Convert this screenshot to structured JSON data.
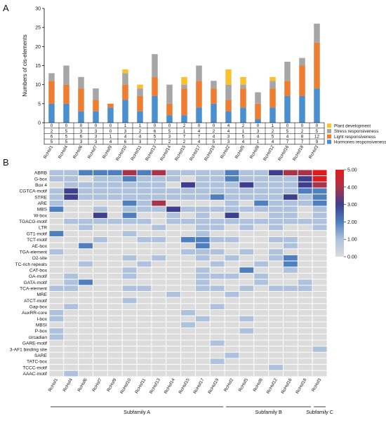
{
  "panels": [
    {
      "label": "A"
    },
    {
      "label": "B"
    }
  ],
  "chart_data": [
    {
      "type": "bar",
      "stacked": true,
      "panel": "A",
      "ylabel": "Numbers of cis-elements",
      "ylim": [
        0,
        30
      ],
      "yticks": [
        0,
        5,
        10,
        15,
        20,
        25,
        30
      ],
      "categories": [
        "RcHsf1",
        "RcHsf4",
        "RcHsf6",
        "RcHsf7",
        "RcHsf9",
        "RcHsf10",
        "RcHsf11",
        "RcHsf13",
        "RcHsf14",
        "RcHsf15",
        "RcHsf17",
        "RcHsf19",
        "RcHsf2",
        "RcHsf5",
        "RcHsf8",
        "RcHsf12",
        "RcHsf16",
        "RcHsf18",
        "RcHsf3"
      ],
      "series": [
        {
          "name": "Hormones responsiveness",
          "color": "#4a8fcf",
          "values": [
            5,
            5,
            3,
            3,
            4,
            6,
            3,
            7,
            2,
            2,
            4,
            5,
            3,
            4,
            1,
            4,
            7,
            7,
            9
          ]
        },
        {
          "name": "Light responsiveness",
          "color": "#ee7d31",
          "values": [
            6,
            5,
            6,
            3,
            1,
            4,
            4,
            5,
            3,
            7,
            7,
            4,
            3,
            5,
            4,
            5,
            4,
            8,
            12
          ]
        },
        {
          "name": "Stress responsiveness",
          "color": "#a6a6a6",
          "values": [
            2,
            5,
            3,
            3,
            0,
            3,
            2,
            6,
            5,
            1,
            4,
            2,
            4,
            1,
            3,
            2,
            5,
            2,
            5
          ]
        },
        {
          "name": "Plant development",
          "color": "#fbc02d",
          "values": [
            0,
            0,
            0,
            0,
            0,
            1,
            1,
            0,
            0,
            2,
            0,
            0,
            4,
            2,
            0,
            1,
            0,
            0,
            0
          ]
        }
      ],
      "table_rows": [
        "Plant development",
        "Stress responsiveness",
        "Light responsiveness",
        "Hormones responsiveness"
      ],
      "legend": "right of table"
    },
    {
      "type": "heatmap",
      "panel": "B",
      "columns": [
        "RcHsf1",
        "RcHsf4",
        "RcHsf6",
        "RcHsf7",
        "RcHsf9",
        "RcHsf10",
        "RcHsf11",
        "RcHsf13",
        "RcHsf14",
        "RcHsf15",
        "RcHsf17",
        "RcHsf19",
        "RcHsf2",
        "RcHsf5",
        "RcHsf8",
        "RcHsf12",
        "RcHsf16",
        "RcHsf18",
        "RcHsf3"
      ],
      "rows": [
        "ABRB",
        "G-box",
        "Box 4",
        "CGTCA-motif",
        "STRE",
        "ARE",
        "MBS",
        "W-box",
        "TGACG-motif",
        "LTR",
        "GT1-motif",
        "TCT-motif",
        "AE-box",
        "TGA-element",
        "O2-site",
        "TC-rich repeats",
        "CAT-box",
        "GA-motif",
        "GATA-motif",
        "TCA-element",
        "MRE",
        "ATCT-motif",
        "Gap-box",
        "AuxRR-core",
        "I-box",
        "MBSI",
        "P-box",
        "circadian",
        "GARE-motif",
        "3-AF1 binding site",
        "SARE",
        "TATC-box",
        "TCCC-motif",
        "AAAC-motif"
      ],
      "values": [
        [
          1,
          1,
          2,
          2,
          2,
          4,
          2,
          4,
          1,
          1,
          1,
          1,
          2,
          1,
          1,
          3,
          4,
          4,
          5
        ],
        [
          1,
          1,
          0,
          1,
          1,
          2,
          1,
          1,
          1,
          0,
          1,
          1,
          2,
          1,
          1,
          1,
          1,
          3,
          5
        ],
        [
          0,
          1,
          1,
          1,
          1,
          1,
          1,
          1,
          0,
          3,
          1,
          1,
          1,
          3,
          1,
          1,
          1,
          3,
          4
        ],
        [
          1,
          3,
          1,
          1,
          1,
          1,
          1,
          1,
          1,
          1,
          1,
          1,
          1,
          1,
          1,
          1,
          1,
          2,
          2
        ],
        [
          1,
          3,
          1,
          1,
          1,
          1,
          1,
          1,
          1,
          1,
          1,
          2,
          1,
          1,
          1,
          1,
          3,
          1,
          2
        ],
        [
          1,
          0,
          0,
          0,
          0,
          2,
          1,
          4,
          0,
          0,
          0,
          0,
          1,
          0,
          2,
          1,
          1,
          1,
          2
        ],
        [
          2,
          0,
          0,
          1,
          0,
          1,
          1,
          1,
          3,
          1,
          1,
          1,
          1,
          1,
          1,
          1,
          1,
          0,
          1
        ],
        [
          0,
          0,
          0,
          3,
          0,
          2,
          0,
          0,
          1,
          0,
          1,
          0,
          3,
          0,
          0,
          1,
          1,
          0,
          1
        ],
        [
          0,
          1,
          1,
          1,
          1,
          1,
          1,
          0,
          1,
          1,
          1,
          1,
          1,
          1,
          1,
          1,
          1,
          1,
          1
        ],
        [
          0,
          0,
          1,
          0,
          0,
          0,
          0,
          1,
          0,
          0,
          1,
          1,
          0,
          1,
          0,
          1,
          0,
          0,
          1
        ],
        [
          2,
          0,
          0,
          0,
          0,
          1,
          0,
          0,
          0,
          0,
          1,
          0,
          0,
          0,
          0,
          0,
          0,
          0,
          0
        ],
        [
          0,
          0,
          0,
          1,
          0,
          0,
          1,
          1,
          0,
          2,
          2,
          1,
          1,
          0,
          0,
          1,
          1,
          0,
          0
        ],
        [
          0,
          0,
          2,
          0,
          0,
          0,
          0,
          0,
          0,
          0,
          2,
          0,
          0,
          0,
          0,
          0,
          1,
          0,
          0
        ],
        [
          1,
          0,
          0,
          0,
          0,
          0,
          0,
          0,
          0,
          1,
          1,
          1,
          0,
          1,
          0,
          1,
          0,
          0,
          0
        ],
        [
          0,
          0,
          0,
          0,
          0,
          1,
          0,
          1,
          0,
          0,
          1,
          0,
          1,
          0,
          0,
          1,
          2,
          0,
          0
        ],
        [
          0,
          0,
          1,
          0,
          0,
          0,
          1,
          0,
          0,
          0,
          0,
          1,
          0,
          0,
          1,
          0,
          2,
          0,
          0
        ],
        [
          0,
          0,
          0,
          0,
          0,
          1,
          0,
          0,
          0,
          0,
          1,
          0,
          0,
          2,
          0,
          0,
          1,
          0,
          0
        ],
        [
          0,
          1,
          0,
          0,
          0,
          1,
          0,
          0,
          0,
          0,
          1,
          1,
          1,
          0,
          1,
          0,
          0,
          0,
          0
        ],
        [
          0,
          1,
          2,
          0,
          0,
          0,
          0,
          0,
          0,
          0,
          1,
          0,
          0,
          0,
          1,
          0,
          0,
          1,
          0
        ],
        [
          1,
          1,
          0,
          0,
          0,
          1,
          1,
          0,
          0,
          0,
          1,
          1,
          0,
          1,
          0,
          1,
          1,
          1,
          0
        ],
        [
          0,
          0,
          0,
          0,
          0,
          0,
          0,
          0,
          1,
          0,
          0,
          0,
          1,
          0,
          0,
          0,
          0,
          0,
          0
        ],
        [
          0,
          0,
          0,
          0,
          0,
          1,
          0,
          0,
          0,
          0,
          0,
          0,
          0,
          0,
          0,
          0,
          0,
          0,
          0
        ],
        [
          0,
          1,
          0,
          0,
          0,
          0,
          0,
          0,
          0,
          0,
          0,
          1,
          0,
          0,
          0,
          0,
          0,
          0,
          0
        ],
        [
          1,
          0,
          0,
          0,
          0,
          0,
          0,
          0,
          0,
          1,
          0,
          0,
          0,
          0,
          0,
          0,
          0,
          0,
          0
        ],
        [
          1,
          0,
          0,
          0,
          0,
          0,
          0,
          0,
          0,
          0,
          1,
          0,
          0,
          1,
          0,
          0,
          0,
          0,
          0
        ],
        [
          0,
          0,
          0,
          0,
          0,
          0,
          0,
          0,
          0,
          1,
          0,
          0,
          0,
          0,
          0,
          0,
          0,
          0,
          0
        ],
        [
          1,
          0,
          0,
          0,
          0,
          0,
          0,
          0,
          0,
          0,
          0,
          0,
          0,
          1,
          0,
          0,
          0,
          0,
          0
        ],
        [
          1,
          0,
          0,
          0,
          0,
          0,
          0,
          0,
          0,
          0,
          0,
          0,
          0,
          0,
          0,
          0,
          0,
          0,
          0
        ],
        [
          0,
          0,
          0,
          0,
          0,
          0,
          0,
          0,
          0,
          0,
          0,
          1,
          0,
          0,
          0,
          0,
          0,
          0,
          0
        ],
        [
          0,
          0,
          0,
          0,
          0,
          0,
          0,
          0,
          0,
          0,
          0,
          0,
          0,
          0,
          0,
          0,
          0,
          0,
          1
        ],
        [
          0,
          0,
          0,
          0,
          0,
          0,
          0,
          0,
          0,
          0,
          0,
          0,
          1,
          0,
          0,
          0,
          0,
          0,
          0
        ],
        [
          0,
          0,
          0,
          0,
          0,
          0,
          0,
          0,
          0,
          0,
          0,
          1,
          0,
          0,
          0,
          0,
          0,
          0,
          0
        ],
        [
          0,
          0,
          0,
          0,
          0,
          0,
          0,
          0,
          0,
          0,
          0,
          0,
          0,
          0,
          0,
          1,
          0,
          0,
          0
        ],
        [
          0,
          1,
          0,
          0,
          0,
          0,
          0,
          0,
          0,
          0,
          0,
          0,
          0,
          0,
          0,
          0,
          0,
          0,
          0
        ]
      ],
      "colorbar": {
        "min": 0,
        "max": 5,
        "ticks": [
          "0.00",
          "1.00",
          "2.00",
          "3.00",
          "4.00",
          "5.00"
        ],
        "colors": [
          "#dcdcdc",
          "#aec2dd",
          "#4f7fbf",
          "#3f3f8f",
          "#a8344a",
          "#e31a1c"
        ]
      },
      "groups": [
        {
          "name": "Subfamily A",
          "from": 0,
          "to": 11
        },
        {
          "name": "Subfamily B",
          "from": 12,
          "to": 17
        },
        {
          "name": "Subfamily C",
          "from": 18,
          "to": 18
        }
      ]
    }
  ]
}
